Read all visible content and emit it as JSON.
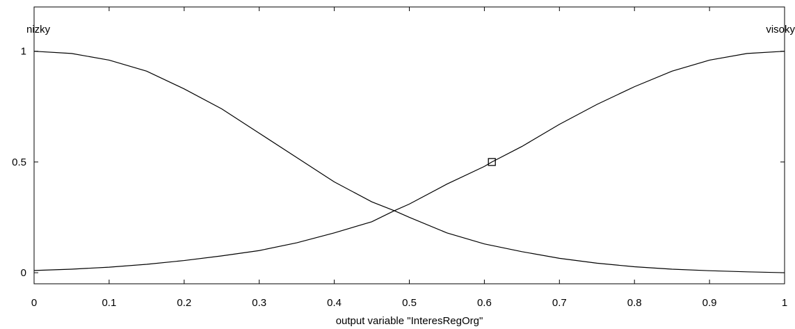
{
  "chart_data": {
    "type": "line",
    "title": "",
    "xlabel": "output variable \"InteresRegOrg\"",
    "ylabel": "",
    "xlim": [
      0,
      1
    ],
    "ylim": [
      -0.05,
      1.2
    ],
    "grid": false,
    "legend": "none",
    "x_ticks": [
      {
        "value": 0,
        "label": "0"
      },
      {
        "value": 0.1,
        "label": "0.1"
      },
      {
        "value": 0.2,
        "label": "0.2"
      },
      {
        "value": 0.3,
        "label": "0.3"
      },
      {
        "value": 0.4,
        "label": "0.4"
      },
      {
        "value": 0.5,
        "label": "0.5"
      },
      {
        "value": 0.6,
        "label": "0.6"
      },
      {
        "value": 0.7,
        "label": "0.7"
      },
      {
        "value": 0.8,
        "label": "0.8"
      },
      {
        "value": 0.9,
        "label": "0.9"
      },
      {
        "value": 1,
        "label": "1"
      }
    ],
    "y_ticks": [
      {
        "value": 0,
        "label": "0"
      },
      {
        "value": 0.5,
        "label": "0.5"
      },
      {
        "value": 1,
        "label": "1"
      }
    ],
    "series": [
      {
        "name": "nizky",
        "x": [
          0,
          0.05,
          0.1,
          0.15,
          0.2,
          0.25,
          0.3,
          0.35,
          0.4,
          0.45,
          0.48,
          0.5,
          0.55,
          0.6,
          0.65,
          0.7,
          0.75,
          0.8,
          0.85,
          0.9,
          0.95,
          1
        ],
        "y": [
          1,
          0.99,
          0.96,
          0.91,
          0.83,
          0.74,
          0.63,
          0.52,
          0.41,
          0.32,
          0.28,
          0.25,
          0.18,
          0.13,
          0.095,
          0.065,
          0.043,
          0.027,
          0.016,
          0.009,
          0.004,
          0
        ]
      },
      {
        "name": "visoky",
        "x": [
          0,
          0.05,
          0.1,
          0.15,
          0.2,
          0.25,
          0.3,
          0.35,
          0.4,
          0.45,
          0.48,
          0.5,
          0.55,
          0.6,
          0.61,
          0.65,
          0.7,
          0.75,
          0.8,
          0.85,
          0.9,
          0.95,
          1
        ],
        "y": [
          0.01,
          0.016,
          0.025,
          0.038,
          0.055,
          0.076,
          0.1,
          0.135,
          0.18,
          0.23,
          0.28,
          0.31,
          0.4,
          0.48,
          0.5,
          0.57,
          0.67,
          0.76,
          0.84,
          0.91,
          0.96,
          0.99,
          1
        ]
      }
    ],
    "annotations": [
      {
        "label": "nizky",
        "anchor": "top-left"
      },
      {
        "label": "visoky",
        "anchor": "top-right"
      }
    ],
    "marker": {
      "x": 0.61,
      "y": 0.5,
      "shape": "square"
    },
    "line_color": "#000000"
  }
}
